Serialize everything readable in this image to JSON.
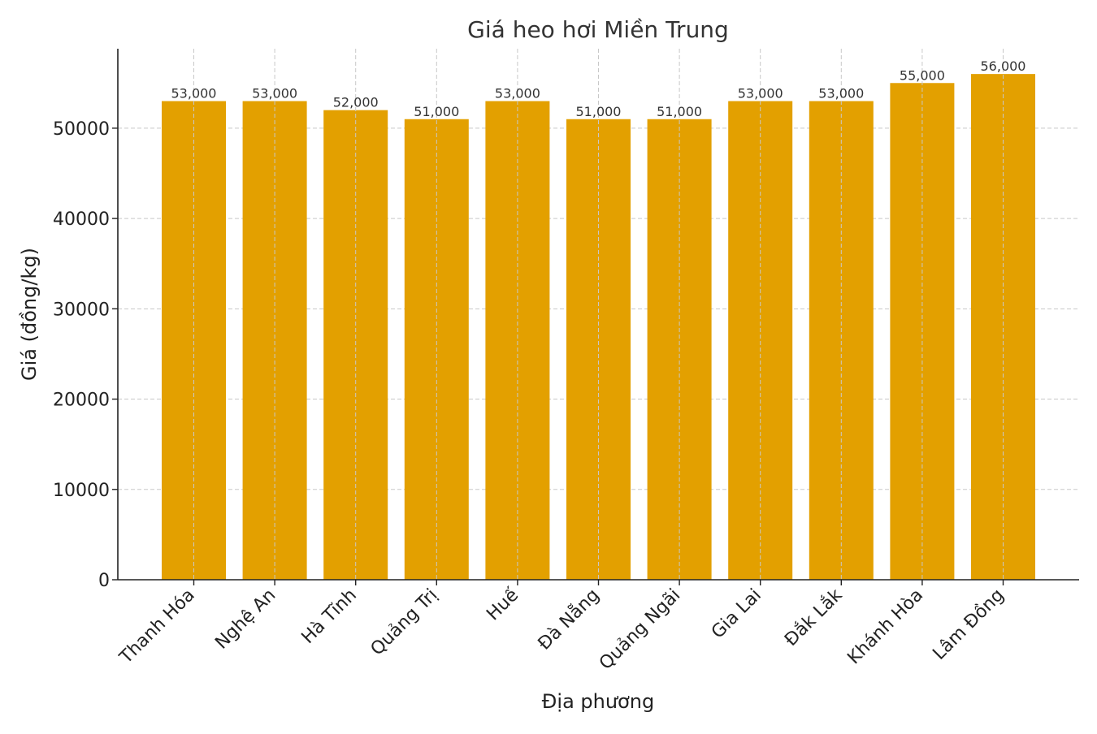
{
  "chart_data": {
    "type": "bar",
    "title": "Giá heo hơi Miền Trung",
    "xlabel": "Địa phương",
    "ylabel": "Giá (đồng/kg)",
    "categories": [
      "Thanh Hóa",
      "Nghệ An",
      "Hà Tĩnh",
      "Quảng Trị",
      "Huế",
      "Đà Nẵng",
      "Quảng Ngãi",
      "Gia Lai",
      "Đắk Lắk",
      "Khánh Hòa",
      "Lâm Đồng"
    ],
    "values": [
      53000,
      53000,
      52000,
      51000,
      53000,
      51000,
      51000,
      53000,
      53000,
      55000,
      56000
    ],
    "data_labels": [
      "53,000",
      "53,000",
      "52,000",
      "51,000",
      "53,000",
      "51,000",
      "51,000",
      "53,000",
      "53,000",
      "55,000",
      "56,000"
    ],
    "yticks": [
      0,
      10000,
      20000,
      30000,
      40000,
      50000
    ],
    "ytick_labels": [
      "0",
      "10000",
      "20000",
      "30000",
      "40000",
      "50000"
    ],
    "ylim": [
      0,
      58800
    ],
    "grid": true,
    "bar_color": "#e3a000"
  }
}
